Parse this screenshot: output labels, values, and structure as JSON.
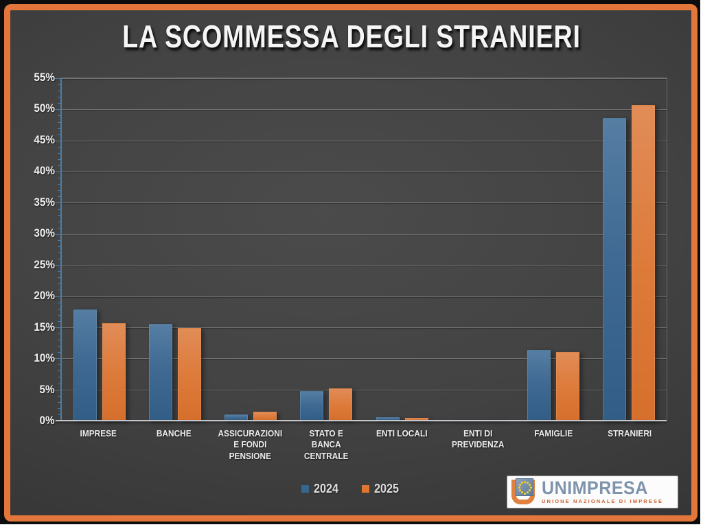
{
  "slide": {
    "title": "LA SCOMMESSA DEGLI STRANIERI",
    "frame_color": "#e2763b",
    "background_color": "#3f3f3f"
  },
  "chart_data": {
    "type": "bar",
    "title": "LA SCOMMESSA DEGLI STRANIERI",
    "categories": [
      "IMPRESE",
      "BANCHE",
      "ASSICURAZIONI E FONDI PENSIONE",
      "STATO E BANCA CENTRALE",
      "ENTI LOCALI",
      "ENTI DI PREVIDENZA",
      "FAMIGLIE",
      "STRANIERI"
    ],
    "series": [
      {
        "name": "2024",
        "color": "#34678f",
        "values": [
          17.9,
          15.5,
          1.0,
          4.7,
          0.5,
          0.05,
          11.3,
          48.6
        ]
      },
      {
        "name": "2025",
        "color": "#e0752f",
        "values": [
          15.7,
          14.9,
          1.4,
          5.2,
          0.4,
          0.1,
          11.0,
          50.7
        ]
      }
    ],
    "xlabel": "",
    "ylabel": "",
    "ylim": [
      0,
      55
    ],
    "ytick_step": 5,
    "yticks": [
      "0%",
      "5%",
      "10%",
      "15%",
      "20%",
      "25%",
      "30%",
      "35%",
      "40%",
      "45%",
      "50%",
      "55%"
    ],
    "grid": true,
    "legend_position": "bottom"
  },
  "logo": {
    "name": "UNIMPRESA",
    "subtitle": "UNIONE NAZIONALE DI IMPRESE",
    "mark": "eu-stars-in-orange-u"
  }
}
